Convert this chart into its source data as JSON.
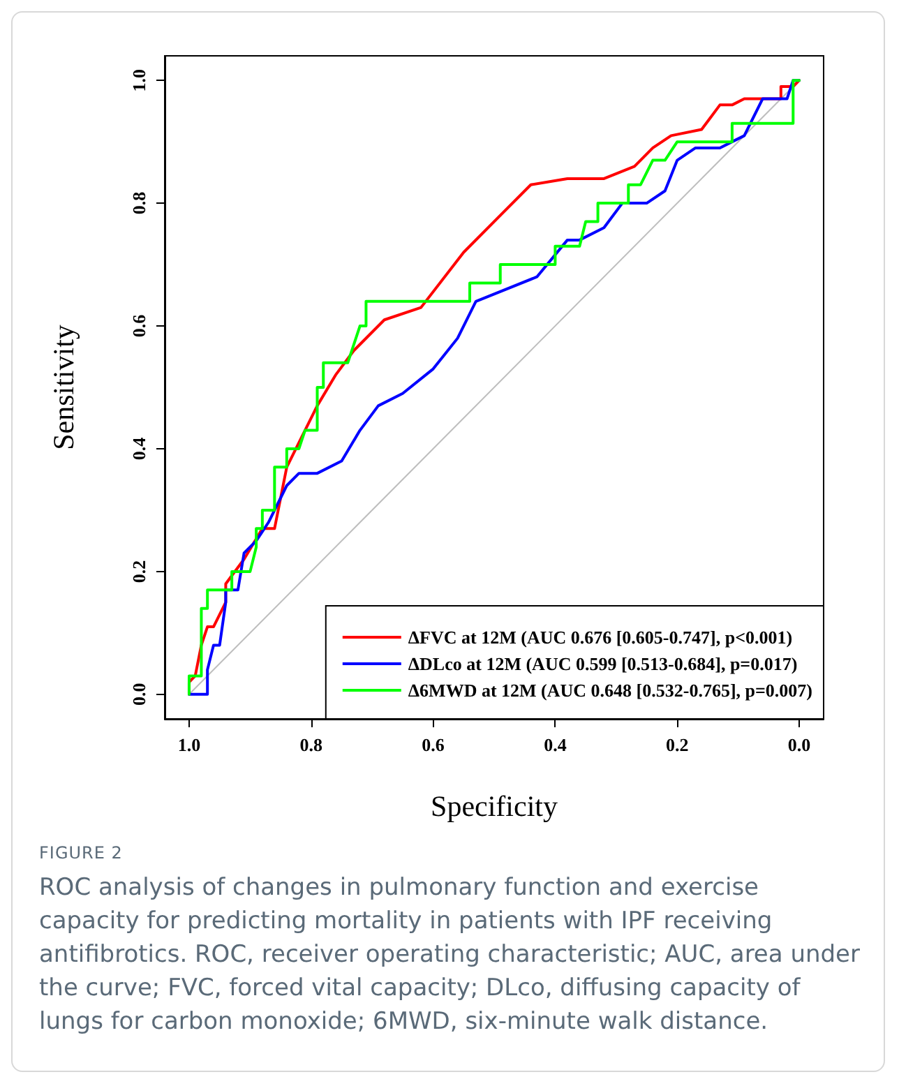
{
  "chart_data": {
    "type": "line",
    "xlabel": "Specificity",
    "ylabel": "Sensitivity",
    "annotations": [
      "FIGURE 2",
      "ROC analysis of changes in pulmonary function and exercise capacity for predicting mortality in patients with IPF receiving antifibrotics. ROC, receiver operating characteristic; AUC, area under the curve; FVC, forced vital capacity; DLco, diffusing capacity of lungs for carbon monoxide; 6MWD, six-minute walk distance."
    ],
    "xlim": [
      1.04,
      -0.04
    ],
    "ylim": [
      -0.04,
      1.04
    ],
    "xticks": [
      {
        "value": 1,
        "label": "1.0"
      },
      {
        "value": 0.8,
        "label": "0.8"
      },
      {
        "value": 0.6,
        "label": "0.6"
      },
      {
        "value": 0.4,
        "label": "0.4"
      },
      {
        "value": 0.2,
        "label": "0.2"
      },
      {
        "value": 0,
        "label": "0.0"
      }
    ],
    "yticks": [
      {
        "value": 0,
        "label": "0.0"
      },
      {
        "value": 0.2,
        "label": "0.2"
      },
      {
        "value": 0.4,
        "label": "0.4"
      },
      {
        "value": 0.6,
        "label": "0.6"
      },
      {
        "value": 0.8,
        "label": "0.8"
      },
      {
        "value": 1,
        "label": "1.0"
      }
    ],
    "grid": false,
    "legend": "bottom right",
    "marker": "none",
    "line_style": "solid",
    "series": [
      {
        "name": "ΔFVC at 12M (AUC 0.676 [0.605-0.747], p<0.001)",
        "color": "#ff0000",
        "x": [
          1,
          1,
          0.99,
          0.98,
          0.97,
          0.96,
          0.94,
          0.94,
          0.91,
          0.88,
          0.86,
          0.84,
          0.82,
          0.79,
          0.76,
          0.73,
          0.68,
          0.62,
          0.55,
          0.49,
          0.44,
          0.38,
          0.32,
          0.27,
          0.24,
          0.21,
          0.16,
          0.13,
          0.11,
          0.09,
          0.03,
          0.03,
          0.01,
          0
        ],
        "values": [
          0,
          0.02,
          0.03,
          0.08,
          0.11,
          0.11,
          0.15,
          0.18,
          0.22,
          0.27,
          0.27,
          0.37,
          0.41,
          0.47,
          0.52,
          0.56,
          0.61,
          0.63,
          0.72,
          0.78,
          0.83,
          0.84,
          0.84,
          0.86,
          0.89,
          0.91,
          0.92,
          0.96,
          0.96,
          0.97,
          0.97,
          0.99,
          0.99,
          1
        ]
      },
      {
        "name": "ΔDLco at 12M (AUC 0.599 [0.513-0.684], p=0.017)",
        "color": "#0000ff",
        "x": [
          1,
          0.97,
          0.97,
          0.96,
          0.95,
          0.94,
          0.94,
          0.92,
          0.91,
          0.89,
          0.87,
          0.84,
          0.82,
          0.79,
          0.75,
          0.72,
          0.69,
          0.65,
          0.6,
          0.56,
          0.53,
          0.43,
          0.38,
          0.36,
          0.32,
          0.29,
          0.25,
          0.22,
          0.2,
          0.17,
          0.13,
          0.11,
          0.09,
          0.08,
          0.06,
          0.02,
          0.01,
          0
        ],
        "values": [
          0,
          0,
          0.04,
          0.08,
          0.08,
          0.15,
          0.17,
          0.17,
          0.23,
          0.25,
          0.28,
          0.34,
          0.36,
          0.36,
          0.38,
          0.43,
          0.47,
          0.49,
          0.53,
          0.58,
          0.64,
          0.68,
          0.74,
          0.74,
          0.76,
          0.8,
          0.8,
          0.82,
          0.87,
          0.89,
          0.89,
          0.9,
          0.91,
          0.93,
          0.97,
          0.97,
          1,
          1
        ]
      },
      {
        "name": "Δ6MWD at 12M (AUC 0.648 [0.532-0.765], p=0.007)",
        "color": "#00ff00",
        "x": [
          1,
          1,
          0.98,
          0.98,
          0.97,
          0.97,
          0.93,
          0.93,
          0.9,
          0.89,
          0.89,
          0.88,
          0.88,
          0.86,
          0.86,
          0.84,
          0.84,
          0.82,
          0.81,
          0.79,
          0.79,
          0.78,
          0.78,
          0.74,
          0.72,
          0.71,
          0.71,
          0.54,
          0.54,
          0.49,
          0.49,
          0.4,
          0.4,
          0.36,
          0.35,
          0.33,
          0.33,
          0.28,
          0.28,
          0.26,
          0.24,
          0.22,
          0.2,
          0.11,
          0.11,
          0.01,
          0.01,
          0
        ],
        "values": [
          0,
          0.03,
          0.03,
          0.14,
          0.14,
          0.17,
          0.17,
          0.2,
          0.2,
          0.24,
          0.27,
          0.27,
          0.3,
          0.3,
          0.37,
          0.37,
          0.4,
          0.4,
          0.43,
          0.43,
          0.5,
          0.5,
          0.54,
          0.54,
          0.6,
          0.6,
          0.64,
          0.64,
          0.67,
          0.67,
          0.7,
          0.7,
          0.73,
          0.73,
          0.77,
          0.77,
          0.8,
          0.8,
          0.83,
          0.83,
          0.87,
          0.87,
          0.9,
          0.9,
          0.93,
          0.93,
          1,
          1
        ]
      },
      {
        "color": "#bebebe",
        "x": [
          1,
          0
        ],
        "values": [
          0,
          1
        ]
      }
    ]
  }
}
